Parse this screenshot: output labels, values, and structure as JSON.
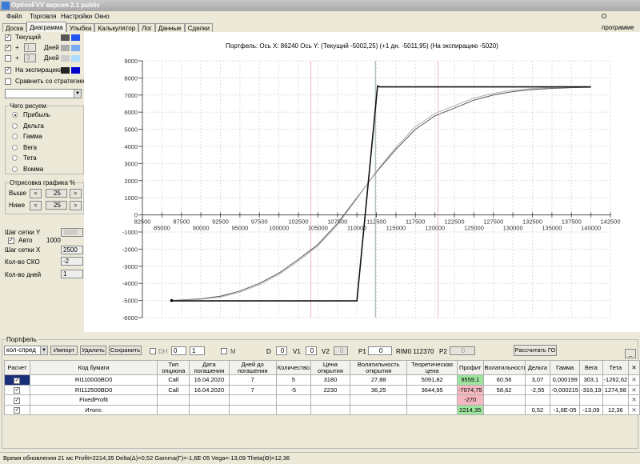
{
  "window": {
    "title": "OptionFVV версия 2.1 public"
  },
  "menu": {
    "items": [
      "Файл",
      "Торговля",
      "Настройки",
      "Окно"
    ],
    "about": "О программе"
  },
  "tabs": [
    "Доска",
    "Диаграмма",
    "Улыбка",
    "Калькулятор",
    "Лог",
    "Данные",
    "Сделки"
  ],
  "active_tab": "Диаграмма",
  "left": {
    "series": [
      {
        "label": "Текущий",
        "checked": true,
        "color1": "#555555",
        "color2": "#2255ee"
      },
      {
        "prefix": "+",
        "days": "1",
        "label": "Дней",
        "checked": true,
        "color1": "#aaaaaa",
        "color2": "#77aaee"
      },
      {
        "prefix": "+",
        "days": "3",
        "label": "Дней",
        "checked": false,
        "color1": "#cccccc",
        "color2": "#aaddff"
      },
      {
        "label": "На экспирацию",
        "checked": true,
        "color1": "#222222",
        "color2": "#0000cc"
      }
    ],
    "compare_label": "Сравнить со стратегией",
    "compare_value": "",
    "draw_group": {
      "title": "Чего рисуем",
      "options": [
        "Прибыль",
        "Дельта",
        "Гамма",
        "Вега",
        "Тета",
        "Вомма"
      ],
      "selected": 0
    },
    "range_group": {
      "title": "Отрисовка графика %",
      "above_label": "Выше",
      "above": "25",
      "below_label": "Ниже",
      "below": "25",
      "prev": "<",
      "next": ">"
    },
    "grid_y_label": "Шаг сетки Y",
    "grid_y": "1000",
    "auto_label": "Авто",
    "auto_checked": true,
    "auto_value": "1000",
    "grid_x_label": "Шаг сетки X",
    "grid_x": "2500",
    "sko_label": "Кол-во СКО",
    "sko": "-2",
    "days_label": "Кол-во дней",
    "days": "1"
  },
  "chart_header": "Портфель: Ось X: 86240 Ось Y:  (Текущий -5002,25)  (+1 дн. -5011,95)  (На экспирацию -5020)",
  "chart_data": {
    "type": "line",
    "xlim": [
      82500,
      142500
    ],
    "ylim": [
      -6000,
      9000
    ],
    "xtick_step": 2500,
    "ytick_step": 1000,
    "grid": true,
    "current_price_line": 112370,
    "sigma_lines": [
      104100,
      120400
    ],
    "series": [
      {
        "name": "Текущий",
        "color": "#555555",
        "x": [
          86240,
          90000,
          92500,
          95000,
          97500,
          100000,
          102500,
          105000,
          107500,
          110000,
          112500,
          115000,
          117500,
          120000,
          122500,
          125000,
          127500,
          130000,
          132500,
          135000,
          137500,
          140000
        ],
        "y": [
          -5002,
          -4900,
          -4750,
          -4450,
          -4000,
          -3400,
          -2600,
          -1730,
          -500,
          1000,
          2500,
          3830,
          5000,
          5780,
          6240,
          6700,
          7000,
          7200,
          7320,
          7390,
          7430,
          7450
        ]
      },
      {
        "name": "+1 дн.",
        "color": "#b0b0b0",
        "x": [
          86240,
          90000,
          92500,
          95000,
          97500,
          100000,
          102500,
          105000,
          107500,
          110000,
          112500,
          115000,
          117500,
          120000,
          122500,
          125000,
          127500,
          130000,
          132500,
          135000,
          137500,
          140000
        ],
        "y": [
          -5012,
          -4930,
          -4800,
          -4520,
          -4080,
          -3480,
          -2700,
          -1800,
          -600,
          950,
          2550,
          3950,
          5150,
          5920,
          6380,
          6820,
          7100,
          7280,
          7380,
          7430,
          7460,
          7470
        ]
      },
      {
        "name": "На экспирацию",
        "color": "#111111",
        "x": [
          86240,
          110000,
          112650,
          112900,
          140000
        ],
        "y": [
          -5020,
          -5020,
          7530,
          7480,
          7480
        ]
      }
    ]
  },
  "portfolio": {
    "title": "Портфель",
    "strategy": "кол-спред",
    "import": "Импорт",
    "delete": "Удалить",
    "save": "Сохранить",
    "dh_label": "DH",
    "dh1": "0",
    "dh2": "1",
    "m_label": "M",
    "d_label": "D",
    "d": "0",
    "v1_label": "V1",
    "v1": "0",
    "v2_label": "V2",
    "v2": "0",
    "p1_label": "P1",
    "p1": "0",
    "ticker": "RIM0 112370",
    "p2_label": "P2",
    "p2": "0",
    "calc_go": "Рассчитать ГО",
    "minimize": "_",
    "columns": [
      "Расчет",
      "Код бумаги",
      "Тип опциона",
      "Дата погашения",
      "Дней до погашения",
      "Количество",
      "Цена открытия",
      "Волатильность открытия",
      "Теоретическая цена",
      "Профит",
      "Волатильность",
      "Дельта",
      "Гамма",
      "Вега",
      "Тета",
      "✕"
    ],
    "rows": [
      [
        "RI110000BD0",
        "Call",
        "16.04.2020",
        "7",
        "5",
        "3180",
        "27,88",
        "5091,82",
        "9559,1",
        "60,56",
        "3,07",
        "0,000199",
        "303,1",
        "-1262,62"
      ],
      [
        "RI112500BD0",
        "Call",
        "16.04.2020",
        "7",
        "-5",
        "2230",
        "36,25",
        "3644,95",
        "-7074,75",
        "58,62",
        "-2,55",
        "-0,000215",
        "-316,19",
        "1274,98"
      ],
      [
        "FixedProfit",
        "",
        "",
        "",
        "",
        "",
        "",
        "",
        "-270",
        "",
        "",
        "",
        "",
        ""
      ],
      [
        "Итого:",
        "",
        "",
        "",
        "",
        "",
        "",
        "",
        "2214,35",
        "",
        "0,52",
        "-1,6E-05",
        "-13,09",
        "12,36"
      ]
    ],
    "profit_colors": [
      "green",
      "pink",
      "pink",
      "green"
    ]
  },
  "status": "Время обновления 21 мс  Profit=2214,35 Delta(Δ)=0,52 Gamma(Γ)=-1,6E-05 Vega=-13,09 Theta(Θ)=12,36"
}
